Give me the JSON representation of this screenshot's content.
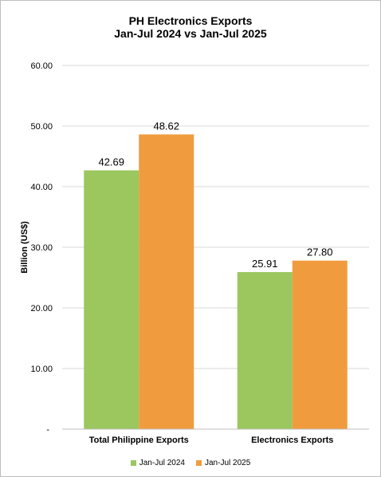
{
  "chart_data": {
    "type": "bar",
    "title": [
      "PH Electronics Exports",
      "Jan-Jul 2024 vs Jan-Jul 2025"
    ],
    "ylabel": "Billion (US$)",
    "xlabel": "",
    "categories": [
      "Total Philippine Exports",
      "Electronics Exports"
    ],
    "series": [
      {
        "name": "Jan-Jul 2024",
        "values": [
          42.69,
          25.91
        ],
        "labels": [
          "42.69",
          "25.91"
        ],
        "color": "#9BC75E"
      },
      {
        "name": "Jan-Jul 2025",
        "values": [
          48.62,
          27.8
        ],
        "labels": [
          "48.62",
          "27.80"
        ],
        "color": "#F09C3E"
      }
    ],
    "yticks": [
      0,
      10,
      20,
      30,
      40,
      50,
      60
    ],
    "ytick_labels": [
      "-",
      "10.00",
      "20.00",
      "30.00",
      "40.00",
      "50.00",
      "60.00"
    ],
    "ylim": [
      0,
      60
    ],
    "grid": true,
    "legend_position": "bottom"
  }
}
